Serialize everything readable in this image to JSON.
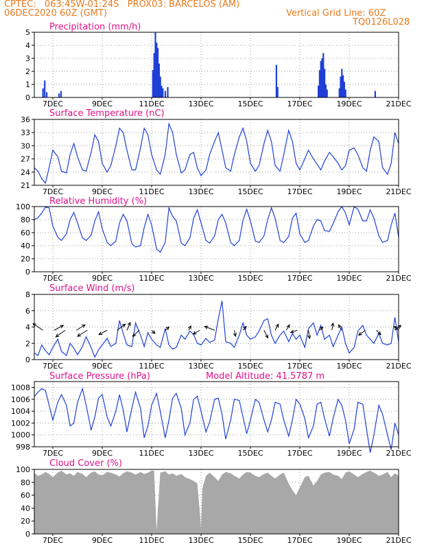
{
  "header": {
    "line1": "CPTEC:   063:45W-01:24S   PROX03: BARCELOS (AM)",
    "line2_left": "06DEC2020 60Z (GMT)",
    "line2_right": "Vertical Grid Line: 60Z",
    "line3_right": "TQ0126L028"
  },
  "colors": {
    "header": "#e8791c",
    "panel_title": "#e0128a",
    "series": "#1f3fd6",
    "cloud_fill": "#a8a8a8",
    "grid": "#9a9a9a"
  },
  "x_axis": {
    "start_day": 6.25,
    "end_day": 21,
    "ticks": [
      {
        "day": 7,
        "label": "7DEC"
      },
      {
        "day": 9,
        "label": "9DEC"
      },
      {
        "day": 11,
        "label": "11DEC"
      },
      {
        "day": 13,
        "label": "13DEC"
      },
      {
        "day": 15,
        "label": "15DEC"
      },
      {
        "day": 17,
        "label": "17DEC"
      },
      {
        "day": 19,
        "label": "19DEC"
      },
      {
        "day": 21,
        "label": "21DEC"
      }
    ]
  },
  "chart_data": [
    {
      "id": "precip",
      "type": "bar",
      "title": "Precipitation (mm/h)",
      "ylim": [
        0,
        5
      ],
      "yticks": [
        0,
        1,
        2,
        3,
        4,
        5
      ],
      "x": [
        6.6,
        6.67,
        6.75,
        7.25,
        7.33,
        11.05,
        11.1,
        11.15,
        11.2,
        11.25,
        11.3,
        11.35,
        11.4,
        11.45,
        11.55,
        11.65,
        16.05,
        16.1,
        17.75,
        17.8,
        17.85,
        17.9,
        17.95,
        18.0,
        18.05,
        18.1,
        18.6,
        18.65,
        18.7,
        18.75,
        18.8,
        18.85,
        20.05
      ],
      "values": [
        0.7,
        1.3,
        0.4,
        0.3,
        0.5,
        2.1,
        3.4,
        5.0,
        4.2,
        3.8,
        2.6,
        1.6,
        0.9,
        0.7,
        0.5,
        0.8,
        2.5,
        0.8,
        0.9,
        2.1,
        2.8,
        3.0,
        3.4,
        2.2,
        1.0,
        0.6,
        0.7,
        1.6,
        2.2,
        1.7,
        1.2,
        0.6,
        0.5
      ]
    },
    {
      "id": "temp",
      "type": "line",
      "title": "Surface Temperature (nC)",
      "ylim": [
        21,
        36
      ],
      "yticks": [
        21,
        24,
        27,
        30,
        33,
        36
      ],
      "x": [
        6.25,
        6.4,
        6.55,
        6.7,
        6.85,
        7.0,
        7.2,
        7.35,
        7.55,
        7.7,
        7.85,
        8.0,
        8.2,
        8.35,
        8.55,
        8.7,
        8.85,
        9.0,
        9.2,
        9.35,
        9.55,
        9.7,
        9.85,
        10.0,
        10.2,
        10.35,
        10.55,
        10.7,
        10.85,
        11.0,
        11.2,
        11.35,
        11.55,
        11.7,
        11.85,
        12.0,
        12.2,
        12.35,
        12.55,
        12.7,
        12.85,
        13.0,
        13.2,
        13.35,
        13.55,
        13.7,
        13.85,
        14.0,
        14.2,
        14.35,
        14.55,
        14.7,
        14.85,
        15.0,
        15.2,
        15.35,
        15.55,
        15.7,
        15.85,
        16.0,
        16.2,
        16.35,
        16.55,
        16.7,
        16.85,
        17.0,
        17.2,
        17.35,
        17.55,
        17.7,
        17.85,
        18.0,
        18.2,
        18.35,
        18.55,
        18.7,
        18.85,
        19.0,
        19.2,
        19.35,
        19.55,
        19.7,
        19.85,
        20.0,
        20.2,
        20.35,
        20.55,
        20.7,
        20.85,
        21.0
      ],
      "values": [
        25,
        24.2,
        22.5,
        21.5,
        25,
        29,
        27.5,
        24.2,
        23.8,
        28,
        30.5,
        27.5,
        24.5,
        24.2,
        28.5,
        32.5,
        31,
        26,
        24,
        25.5,
        30,
        34,
        33,
        29,
        24.5,
        24.5,
        29.5,
        34,
        32.5,
        28,
        24.5,
        23.5,
        28,
        35,
        33,
        28,
        23.8,
        24.5,
        28,
        28.5,
        25,
        23.2,
        24.5,
        28,
        31,
        33,
        29,
        25,
        24.2,
        28,
        32,
        34,
        31,
        26,
        24.2,
        25.5,
        30.5,
        33.5,
        31,
        25.5,
        24.2,
        28,
        33.5,
        31,
        26,
        24.5,
        27,
        29,
        27,
        25.8,
        24.5,
        26.5,
        28.5,
        27.5,
        26,
        24.5,
        25.5,
        29,
        29.5,
        28,
        25,
        24.2,
        29,
        32,
        31,
        25,
        23.5,
        26,
        33,
        30.5
      ]
    },
    {
      "id": "rh",
      "type": "line",
      "title": "Relative Humidity (%)",
      "ylim": [
        0,
        100
      ],
      "yticks": [
        0,
        20,
        40,
        60,
        80,
        100
      ],
      "x": [
        6.25,
        6.4,
        6.55,
        6.7,
        6.85,
        7.0,
        7.2,
        7.35,
        7.55,
        7.7,
        7.85,
        8.0,
        8.2,
        8.35,
        8.55,
        8.7,
        8.85,
        9.0,
        9.2,
        9.35,
        9.55,
        9.7,
        9.85,
        10.0,
        10.2,
        10.35,
        10.55,
        10.7,
        10.85,
        11.0,
        11.2,
        11.35,
        11.55,
        11.7,
        11.85,
        12.0,
        12.2,
        12.35,
        12.55,
        12.7,
        12.85,
        13.0,
        13.2,
        13.35,
        13.55,
        13.7,
        13.85,
        14.0,
        14.2,
        14.35,
        14.55,
        14.7,
        14.85,
        15.0,
        15.2,
        15.35,
        15.55,
        15.7,
        15.85,
        16.0,
        16.2,
        16.35,
        16.55,
        16.7,
        16.85,
        17.0,
        17.2,
        17.35,
        17.55,
        17.7,
        17.85,
        18.0,
        18.2,
        18.35,
        18.55,
        18.7,
        18.85,
        19.0,
        19.2,
        19.35,
        19.55,
        19.7,
        19.85,
        20.0,
        20.2,
        20.35,
        20.55,
        20.7,
        20.85,
        21.0
      ],
      "values": [
        80,
        83,
        90,
        99,
        98,
        70,
        53,
        48,
        58,
        80,
        91,
        75,
        52,
        48,
        56,
        78,
        92,
        66,
        45,
        40,
        47,
        75,
        88,
        78,
        43,
        38,
        40,
        68,
        88,
        72,
        35,
        30,
        45,
        98,
        85,
        78,
        44,
        40,
        52,
        82,
        95,
        75,
        48,
        44,
        55,
        80,
        88,
        75,
        45,
        40,
        48,
        79,
        96,
        78,
        47,
        45,
        55,
        80,
        98,
        82,
        48,
        45,
        54,
        82,
        90,
        58,
        45,
        48,
        70,
        80,
        78,
        63,
        62,
        74,
        92,
        100,
        90,
        72,
        100,
        96,
        78,
        78,
        95,
        82,
        55,
        45,
        48,
        72,
        90,
        53
      ]
    },
    {
      "id": "wind",
      "type": "line",
      "title": "Surface Wind (m/s)",
      "ylim": [
        0,
        8
      ],
      "yticks": [
        0,
        2,
        4,
        6,
        8
      ],
      "x": [
        6.25,
        6.4,
        6.55,
        6.7,
        6.85,
        7.0,
        7.2,
        7.35,
        7.55,
        7.7,
        7.85,
        8.0,
        8.2,
        8.35,
        8.55,
        8.7,
        8.85,
        9.0,
        9.2,
        9.35,
        9.55,
        9.7,
        9.85,
        10.0,
        10.2,
        10.35,
        10.55,
        10.7,
        10.85,
        11.0,
        11.2,
        11.35,
        11.55,
        11.7,
        11.85,
        12.0,
        12.2,
        12.35,
        12.55,
        12.7,
        12.85,
        13.0,
        13.2,
        13.35,
        13.55,
        13.7,
        13.85,
        14.0,
        14.2,
        14.35,
        14.55,
        14.7,
        14.85,
        15.0,
        15.2,
        15.35,
        15.55,
        15.7,
        15.85,
        16.0,
        16.2,
        16.35,
        16.55,
        16.7,
        16.85,
        17.0,
        17.2,
        17.35,
        17.55,
        17.7,
        17.85,
        18.0,
        18.2,
        18.35,
        18.55,
        18.7,
        18.85,
        19.0,
        19.2,
        19.35,
        19.55,
        19.7,
        19.85,
        20.0,
        20.2,
        20.35,
        20.55,
        20.7,
        20.85,
        21.0
      ],
      "values": [
        0.8,
        0.5,
        1.8,
        1.1,
        0.6,
        1.5,
        2.5,
        1.0,
        0.5,
        2.0,
        1.4,
        0.6,
        1.6,
        2.8,
        1.5,
        0.3,
        1.2,
        1.8,
        2.6,
        1.6,
        2.0,
        4.8,
        3.2,
        1.8,
        1.6,
        4.5,
        3.0,
        1.6,
        3.3,
        2.5,
        1.8,
        1.5,
        3.8,
        1.8,
        1.3,
        1.5,
        3.0,
        2.5,
        3.5,
        3.1,
        2.0,
        1.8,
        2.6,
        2.1,
        2.4,
        5.0,
        7.2,
        2.2,
        2.0,
        1.5,
        3.0,
        4.5,
        3.0,
        2.5,
        2.8,
        3.5,
        4.8,
        5.0,
        3.0,
        2.0,
        3.0,
        3.5,
        2.2,
        3.2,
        2.5,
        3.0,
        1.5,
        3.8,
        4.5,
        3.0,
        4.2,
        2.5,
        3.0,
        1.6,
        3.0,
        4.0,
        2.0,
        0.8,
        1.5,
        3.5,
        4.2,
        3.0,
        2.5,
        2.0,
        3.2,
        2.0,
        1.8,
        2.0,
        5.2,
        2.2
      ]
    },
    {
      "id": "press",
      "type": "line",
      "title": "Surface Pressure (hPa)",
      "annotation": "Model Altitude: 41.5787 m",
      "ylim": [
        998,
        1009
      ],
      "yticks": [
        998,
        1000,
        1002,
        1004,
        1006,
        1008
      ],
      "x": [
        6.25,
        6.4,
        6.55,
        6.7,
        6.85,
        7.0,
        7.2,
        7.35,
        7.55,
        7.7,
        7.85,
        8.0,
        8.2,
        8.35,
        8.55,
        8.7,
        8.85,
        9.0,
        9.2,
        9.35,
        9.55,
        9.7,
        9.85,
        10.0,
        10.2,
        10.35,
        10.55,
        10.7,
        10.85,
        11.0,
        11.2,
        11.35,
        11.55,
        11.7,
        11.85,
        12.0,
        12.2,
        12.35,
        12.55,
        12.7,
        12.85,
        13.0,
        13.2,
        13.35,
        13.55,
        13.7,
        13.85,
        14.0,
        14.2,
        14.35,
        14.55,
        14.7,
        14.85,
        15.0,
        15.2,
        15.35,
        15.55,
        15.7,
        15.85,
        16.0,
        16.2,
        16.35,
        16.55,
        16.7,
        16.85,
        17.0,
        17.2,
        17.35,
        17.55,
        17.7,
        17.85,
        18.0,
        18.2,
        18.35,
        18.55,
        18.7,
        18.85,
        19.0,
        19.2,
        19.35,
        19.55,
        19.7,
        19.85,
        20.0,
        20.2,
        20.35,
        20.55,
        20.7,
        20.85,
        21.0
      ],
      "values": [
        1006.5,
        1007.2,
        1007.8,
        1007.5,
        1005.0,
        1002.5,
        1005.5,
        1006.8,
        1005.0,
        1001.5,
        1002.0,
        1005.5,
        1007.8,
        1005.0,
        1000.8,
        1003.0,
        1006.2,
        1006.8,
        1003.0,
        1001.5,
        1004.0,
        1006.8,
        1004.2,
        1000.5,
        1004.5,
        1007.2,
        1004.5,
        999.5,
        1001.5,
        1005.0,
        1007.0,
        1004.0,
        999.5,
        1002.5,
        1006.2,
        1007.0,
        1004.5,
        1000.0,
        1002.0,
        1006.0,
        1006.5,
        1004.0,
        1000.5,
        1002.2,
        1006.0,
        1006.2,
        1003.5,
        999.3,
        1002.5,
        1006.0,
        1005.8,
        1003.0,
        1000.2,
        1002.5,
        1006.0,
        1005.5,
        1002.5,
        1000.5,
        1002.5,
        1005.5,
        1005.2,
        1002.5,
        999.8,
        1002.5,
        1006.0,
        1005.2,
        1002.8,
        999.5,
        1001.5,
        1005.2,
        1005.5,
        1002.8,
        999.8,
        1002.8,
        1006.0,
        1005.0,
        1002.5,
        998.5,
        1001.0,
        1005.5,
        1005.2,
        1001.0,
        997.0,
        1000.0,
        1005.0,
        1003.5,
        1000.0,
        997.5,
        1002.0,
        1000.0
      ]
    },
    {
      "id": "cloud",
      "type": "area",
      "title": "Cloud Cover (%)",
      "ylim": [
        0,
        100
      ],
      "yticks": [
        0,
        20,
        40,
        60,
        80,
        100
      ],
      "x": [
        6.25,
        6.4,
        6.55,
        6.7,
        6.85,
        7.0,
        7.2,
        7.35,
        7.55,
        7.7,
        7.85,
        8.0,
        8.2,
        8.35,
        8.55,
        8.7,
        8.85,
        9.0,
        9.2,
        9.35,
        9.55,
        9.7,
        9.85,
        10.0,
        10.2,
        10.35,
        10.55,
        10.7,
        10.85,
        11.0,
        11.1,
        11.2,
        11.35,
        11.55,
        11.7,
        11.85,
        12.0,
        12.2,
        12.35,
        12.55,
        12.7,
        12.85,
        12.95,
        13.0,
        13.05,
        13.2,
        13.35,
        13.55,
        13.7,
        13.85,
        14.0,
        14.2,
        14.35,
        14.55,
        14.7,
        14.85,
        15.0,
        15.2,
        15.35,
        15.55,
        15.7,
        15.85,
        16.0,
        16.2,
        16.35,
        16.55,
        16.7,
        16.85,
        17.0,
        17.2,
        17.35,
        17.55,
        17.7,
        17.85,
        18.0,
        18.2,
        18.35,
        18.55,
        18.7,
        18.85,
        19.0,
        19.2,
        19.35,
        19.55,
        19.7,
        19.85,
        20.0,
        20.2,
        20.35,
        20.55,
        20.7,
        20.85,
        21.0
      ],
      "values": [
        95,
        90,
        92,
        96,
        93,
        88,
        95,
        98,
        92,
        94,
        90,
        96,
        93,
        88,
        95,
        97,
        92,
        91,
        96,
        95,
        92,
        89,
        94,
        97,
        95,
        92,
        96,
        93,
        95,
        98,
        98,
        5,
        95,
        97,
        92,
        94,
        90,
        93,
        88,
        85,
        82,
        78,
        35,
        8,
        70,
        90,
        95,
        88,
        82,
        92,
        96,
        94,
        90,
        86,
        92,
        96,
        95,
        90,
        88,
        93,
        95,
        90,
        86,
        92,
        95,
        78,
        68,
        60,
        72,
        88,
        90,
        75,
        82,
        92,
        95,
        96,
        92,
        90,
        85,
        95,
        97,
        92,
        88,
        93,
        96,
        98,
        95,
        90,
        92,
        96,
        88,
        94,
        90
      ]
    }
  ],
  "wind_vectors": [
    {
      "day": 6.6,
      "u": -0.9,
      "v": 0.6
    },
    {
      "day": 7.05,
      "u": 0.85,
      "v": 0.45
    },
    {
      "day": 7.5,
      "u": -0.85,
      "v": -0.6
    },
    {
      "day": 7.95,
      "u": 0.8,
      "v": 0.5
    },
    {
      "day": 8.4,
      "u": -0.9,
      "v": -0.55
    },
    {
      "day": 9.2,
      "u": -0.75,
      "v": -0.4
    },
    {
      "day": 9.6,
      "u": 0.75,
      "v": 0.55
    },
    {
      "day": 10.0,
      "u": 0.3,
      "v": 0.7
    },
    {
      "day": 10.5,
      "u": -0.6,
      "v": -0.55
    },
    {
      "day": 11.0,
      "u": 0.3,
      "v": -0.3
    },
    {
      "day": 11.55,
      "u": 0.35,
      "v": 0.3
    },
    {
      "day": 12.5,
      "u": 0.2,
      "v": 0.4
    },
    {
      "day": 12.95,
      "u": -0.6,
      "v": -0.35
    },
    {
      "day": 13.55,
      "u": -0.9,
      "v": 0.35
    },
    {
      "day": 14.35,
      "u": 0.1,
      "v": -0.55
    },
    {
      "day": 14.7,
      "u": 0.3,
      "v": 0.35
    },
    {
      "day": 15.55,
      "u": 0.35,
      "v": -0.7
    },
    {
      "day": 16.0,
      "u": 0.3,
      "v": 0.55
    },
    {
      "day": 16.45,
      "u": 0.3,
      "v": 0.5
    },
    {
      "day": 16.9,
      "u": -0.6,
      "v": -0.2
    },
    {
      "day": 17.35,
      "u": 0.1,
      "v": -0.75
    },
    {
      "day": 17.8,
      "u": 0.3,
      "v": 0.3
    },
    {
      "day": 18.3,
      "u": 0.1,
      "v": 0.65
    },
    {
      "day": 18.7,
      "u": -0.3,
      "v": 0.5
    },
    {
      "day": 19.65,
      "u": -0.6,
      "v": -0.45
    },
    {
      "day": 20.1,
      "u": 0.4,
      "v": -0.4
    },
    {
      "day": 20.85,
      "u": 0.55,
      "v": 0.45
    },
    {
      "day": 21.0,
      "u": -0.4,
      "v": 0.35
    }
  ]
}
